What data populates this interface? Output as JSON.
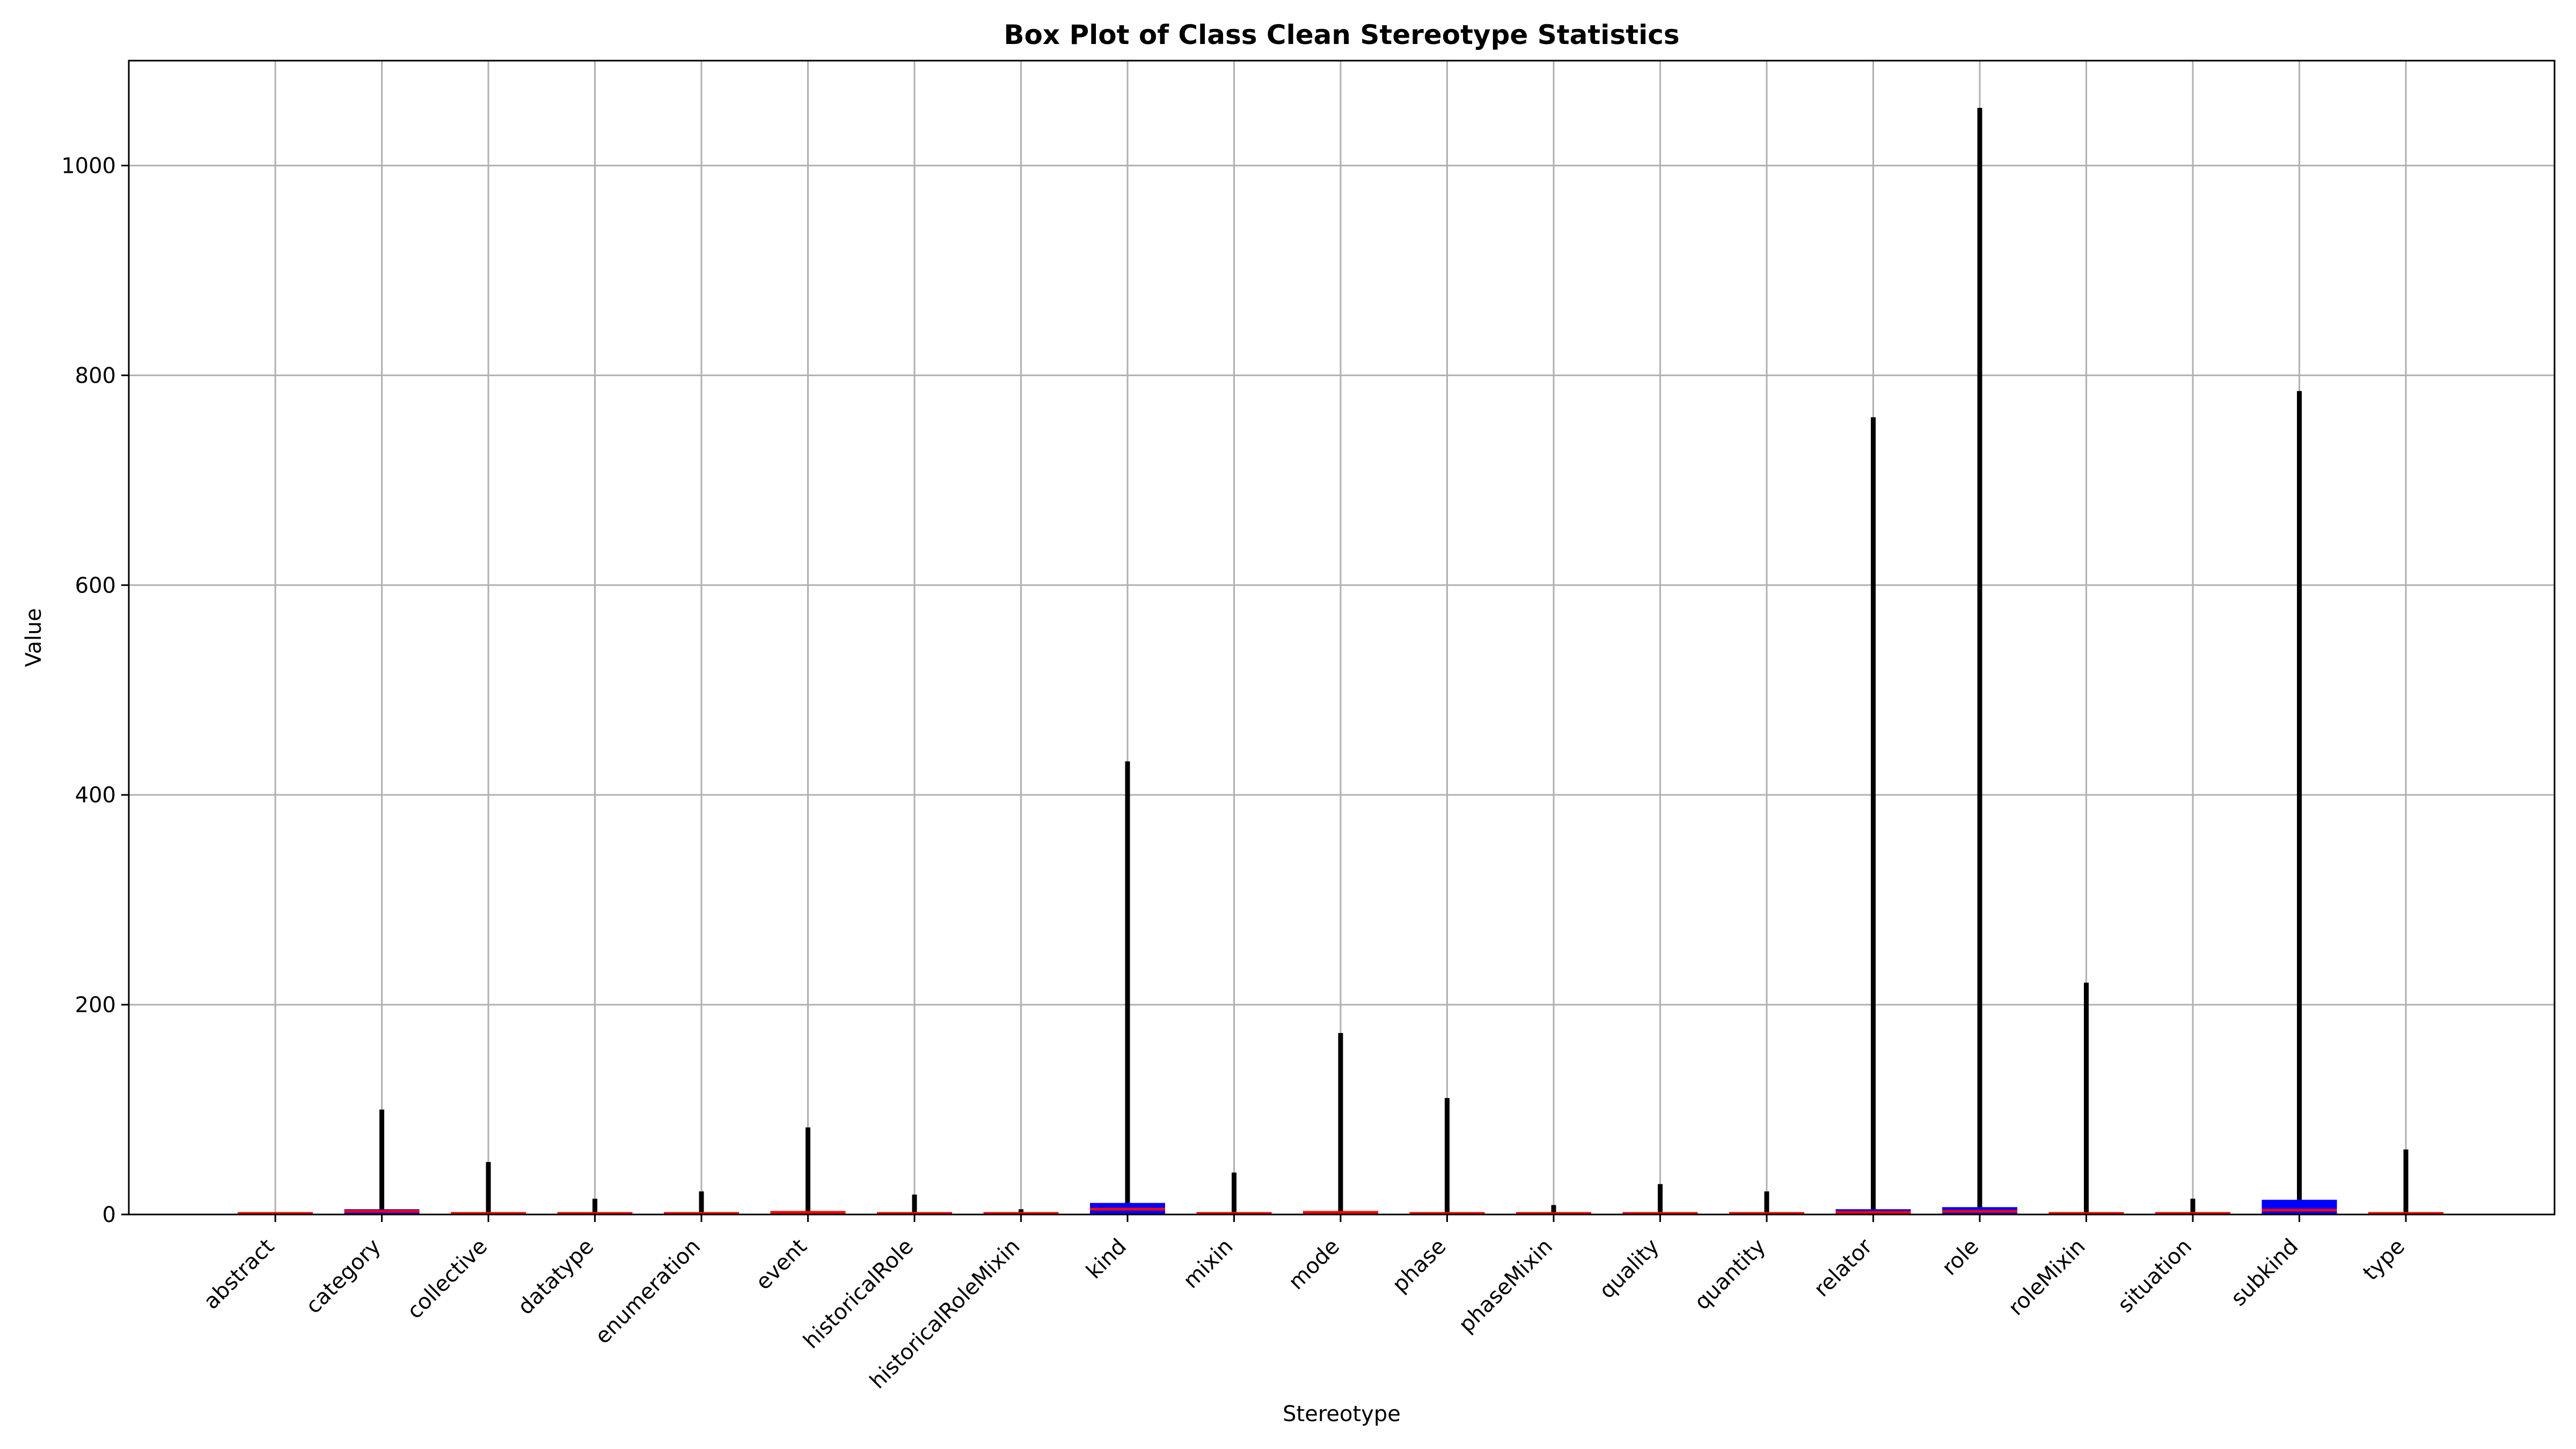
{
  "chart_data": {
    "type": "box",
    "title": "Box Plot of Class Clean Stereotype Statistics",
    "xlabel": "Stereotype",
    "ylabel": "Value",
    "ylim": [
      0,
      1100
    ],
    "yticks": [
      0,
      200,
      400,
      600,
      800,
      1000
    ],
    "grid": true,
    "box_color": "#0000ff",
    "median_color": "#ff0000",
    "whisker_color": "#000000",
    "categories": [
      "abstract",
      "category",
      "collective",
      "datatype",
      "enumeration",
      "event",
      "historicalRole",
      "historicalRoleMixin",
      "kind",
      "mixin",
      "mode",
      "phase",
      "phaseMixin",
      "quality",
      "quantity",
      "relator",
      "role",
      "roleMixin",
      "situation",
      "subkind",
      "type"
    ],
    "boxes": [
      {
        "q1": 0,
        "median": 0,
        "q3": 0,
        "whisker_high": 0
      },
      {
        "q1": 0,
        "median": 2,
        "q3": 5,
        "whisker_high": 100
      },
      {
        "q1": 0,
        "median": 0,
        "q3": 1,
        "whisker_high": 50
      },
      {
        "q1": 0,
        "median": 0,
        "q3": 1,
        "whisker_high": 15
      },
      {
        "q1": 0,
        "median": 0,
        "q3": 1,
        "whisker_high": 22
      },
      {
        "q1": 0,
        "median": 1,
        "q3": 3,
        "whisker_high": 83
      },
      {
        "q1": 0,
        "median": 0,
        "q3": 1,
        "whisker_high": 19
      },
      {
        "q1": 0,
        "median": 0,
        "q3": 0,
        "whisker_high": 5
      },
      {
        "q1": 0,
        "median": 4,
        "q3": 11,
        "whisker_high": 432
      },
      {
        "q1": 0,
        "median": 0,
        "q3": 1,
        "whisker_high": 40
      },
      {
        "q1": 0,
        "median": 1,
        "q3": 3,
        "whisker_high": 173
      },
      {
        "q1": 0,
        "median": 0,
        "q3": 2,
        "whisker_high": 111
      },
      {
        "q1": 0,
        "median": 0,
        "q3": 1,
        "whisker_high": 9
      },
      {
        "q1": 0,
        "median": 0,
        "q3": 2,
        "whisker_high": 29
      },
      {
        "q1": 0,
        "median": 0,
        "q3": 1,
        "whisker_high": 22
      },
      {
        "q1": 0,
        "median": 1,
        "q3": 5,
        "whisker_high": 760
      },
      {
        "q1": 0,
        "median": 2,
        "q3": 7,
        "whisker_high": 1055
      },
      {
        "q1": 0,
        "median": 0,
        "q3": 2,
        "whisker_high": 221
      },
      {
        "q1": 0,
        "median": 0,
        "q3": 1,
        "whisker_high": 15
      },
      {
        "q1": 0,
        "median": 3,
        "q3": 14,
        "whisker_high": 785
      },
      {
        "q1": 0,
        "median": 0,
        "q3": 1,
        "whisker_high": 62
      }
    ]
  }
}
